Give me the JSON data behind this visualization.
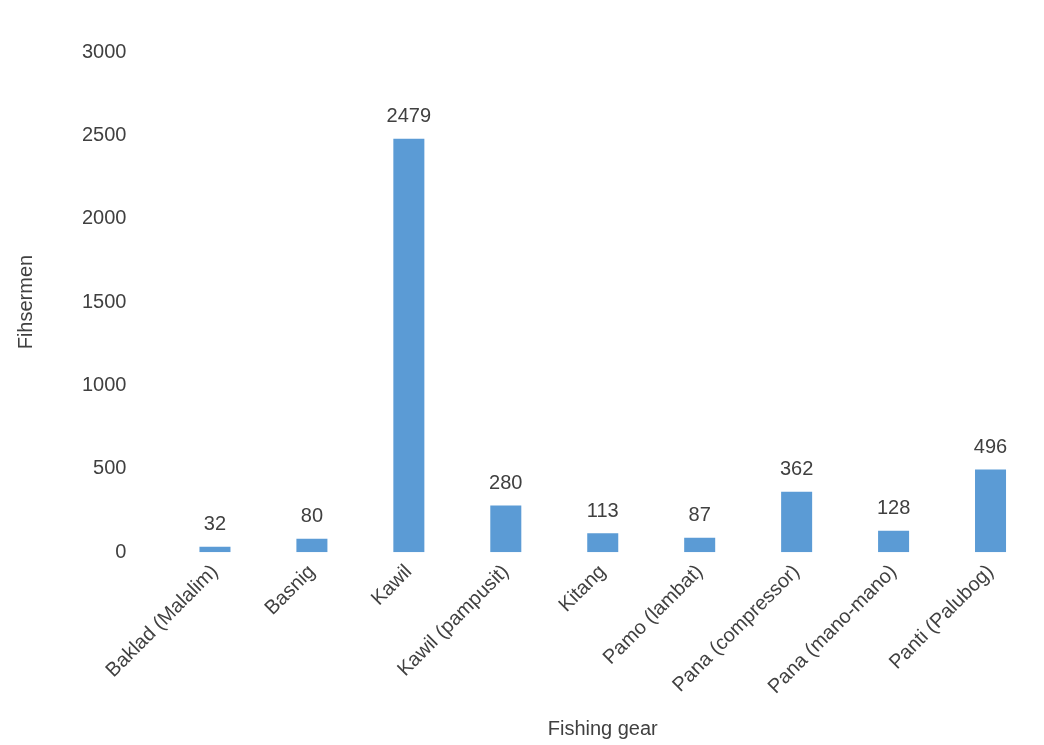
{
  "chart_data": {
    "type": "bar",
    "xlabel": "Fishing gear",
    "ylabel": "Fihsermen",
    "categories": [
      "Baklad (Malalim)",
      "Basnig",
      "Kawil",
      "Kawil (pampusit)",
      "Kitang",
      "Pamo (lambat)",
      "Pana (compressor)",
      "Pana (mano-mano)",
      "Panti (Palubog)"
    ],
    "values": [
      32,
      80,
      2479,
      280,
      113,
      87,
      362,
      128,
      496
    ],
    "color": "#5b9bd5",
    "ylim": [
      0,
      3000
    ],
    "yticks": [
      0,
      500,
      1000,
      1500,
      2000,
      2500,
      3000
    ],
    "grid": false,
    "legend": false,
    "data_labels": true
  }
}
